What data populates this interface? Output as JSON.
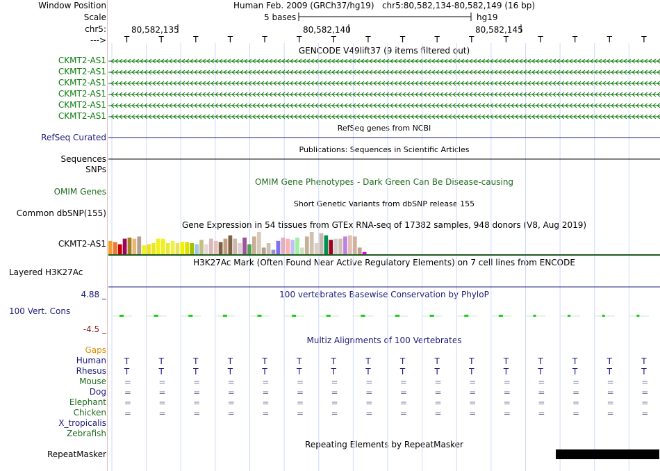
{
  "header": {
    "window_position_label": "Window Position",
    "scale_label": "Scale",
    "chrom_label": "chr5:",
    "strand_label": "--->",
    "assembly_text": "Human Feb. 2009 (GRCh37/hg19)",
    "position_text": "chr5:80,582,134-80,582,149 (16 bp)",
    "scale_text": "5 bases",
    "scale_db": "hg19",
    "coords": [
      "80,582,135",
      "80,582,140",
      "80,582,145"
    ],
    "bases": [
      "T",
      "T",
      "T",
      "T",
      "T",
      "T",
      "T",
      "T",
      "T",
      "T",
      "T",
      "T",
      "T",
      "T",
      "T",
      "T"
    ]
  },
  "gencode": {
    "title": "GENCODE V49lift37 (9 items filtered out)",
    "items": [
      "CKMT2-AS1",
      "CKMT2-AS1",
      "CKMT2-AS1",
      "CKMT2-AS1",
      "CKMT2-AS1",
      "CKMT2-AS1"
    ],
    "color": "#0a7a0a"
  },
  "refseq": {
    "label": "RefSeq Curated",
    "title": "RefSeq genes from NCBI",
    "color": "#1a1a7a"
  },
  "publications": {
    "label": "Sequences",
    "title": "Publications: Sequences in Scientific Articles"
  },
  "snps": {
    "label": "SNPs"
  },
  "omim": {
    "label": "OMIM Genes",
    "title": "OMIM Gene Phenotypes - Dark Green Can Be Disease-causing",
    "color": "#1e6b1e"
  },
  "dbsnp": {
    "label": "Common dbSNP(155)",
    "title": "Short Genetic Variants from dbSNP release 155"
  },
  "gtex": {
    "title": "Gene Expression in 54 tissues from GTEx RNA-seq of 17382 samples, 948 donors (V8, Aug 2019)",
    "label": "CKMT2-AS1",
    "bars": [
      0.6,
      0.55,
      0.45,
      0.7,
      0.75,
      0.7,
      0.8,
      0.4,
      0.45,
      0.5,
      0.7,
      0.7,
      0.5,
      0.6,
      0.5,
      0.55,
      0.55,
      0.5,
      0.45,
      0.65,
      0.45,
      0.7,
      0.6,
      0.55,
      0.7,
      0.85,
      0.7,
      0.5,
      0.75,
      0.45,
      0.8,
      1.0,
      0.3,
      0.5,
      0.2,
      0.6,
      0.75,
      0.7,
      0.65,
      0.75,
      0.3,
      0.8,
      1.0,
      0.5,
      0.95,
      0.85,
      0.65,
      0.7,
      0.7,
      0.8,
      0.85,
      0.8,
      0.3,
      0.1
    ],
    "colors": [
      "#f0a030",
      "#f07830",
      "#c80000",
      "#a00060",
      "#a08020",
      "#e8b87a",
      "#b0a090",
      "#f0f020",
      "#f0e020",
      "#e8e820",
      "#f0f020",
      "#f0f020",
      "#e8e840",
      "#f0f040",
      "#e8e060",
      "#f0f000",
      "#e0e000",
      "#a0c000",
      "#a0c8e0",
      "#c0c080",
      "#e8d8d8",
      "#d8b8b8",
      "#e0c0c0",
      "#806040",
      "#c0a080",
      "#806040",
      "#c8b8b0",
      "#e0d0d0",
      "#a050a0",
      "#50a050",
      "#c8b098",
      "#d8c8b8",
      "#b0a090",
      "#d0c0b0",
      "#a090d0",
      "#8070f0",
      "#e0b0c0",
      "#ffb0b0",
      "#c0c0f0",
      "#a0f0a0",
      "#d0e0c0",
      "#c8b098",
      "#d0c0b0",
      "#e0d0c0",
      "#c8b8b0",
      "#009050",
      "#a00020",
      "#d0d0d0",
      "#d0c0b0",
      "#c080e0",
      "#e0c0b0",
      "#d0b0a0",
      "#c0a090",
      "#e000e0"
    ]
  },
  "h3k27ac": {
    "label": "Layered H3K27Ac",
    "title": "H3K27Ac Mark (Often Found Near Active Regulatory Elements) on 7 cell lines from ENCODE"
  },
  "cons": {
    "label": "100 Vert. Cons",
    "title": "100 vertebrates Basewise Conservation by PhyloP",
    "max": "4.88 _",
    "min": "-4.5 _",
    "max_color": "#1a1a7a",
    "min_color": "#8a1a1a"
  },
  "multiz": {
    "title": "Multiz Alignments of 100 Vertebrates",
    "gaps_label": "Gaps",
    "species": [
      {
        "name": "Human",
        "color": "#1a1a7a",
        "row": "T"
      },
      {
        "name": "Rhesus",
        "color": "#1a1a7a",
        "row": "T"
      },
      {
        "name": "Mouse",
        "color": "#1e6b1e",
        "row": "="
      },
      {
        "name": "Dog",
        "color": "#1a1a7a",
        "row": "="
      },
      {
        "name": "Elephant",
        "color": "#1e6b1e",
        "row": "="
      },
      {
        "name": "Chicken",
        "color": "#1e6b1e",
        "row": "="
      },
      {
        "name": "X_tropicalis",
        "color": "#1a1a7a",
        "row": ""
      },
      {
        "name": "Zebrafish",
        "color": "#1e6b1e",
        "row": ""
      }
    ]
  },
  "repeatmasker": {
    "label": "RepeatMasker",
    "title": "Repeating Elements by RepeatMasker"
  }
}
